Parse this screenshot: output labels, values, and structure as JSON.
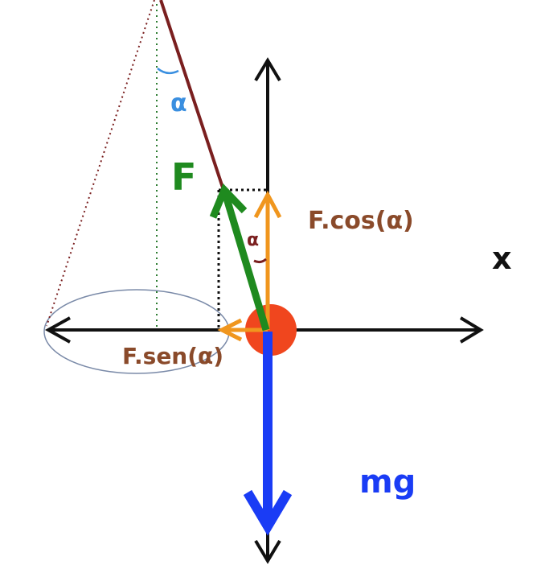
{
  "labels": {
    "force": "F",
    "angle_top": "α",
    "angle_bottom": "α",
    "vertical_component": "F.cos(α)",
    "horizontal_component": "F.sen(α)",
    "weight": "mg",
    "axis_x": "x"
  },
  "colors": {
    "background": "#ffffff",
    "axes": "#111111",
    "string": "#7a1f1f",
    "force": "#1f8a1f",
    "components": "#f0961e",
    "weight": "#1a3cf5",
    "mass": "#f0461e",
    "component_label": "#8a4a2a",
    "weight_label": "#1a3cf5",
    "force_label": "#1f8a1f",
    "angle_top_label": "#3a8fe0",
    "angle_bottom_label": "#7a1f1f",
    "orbit": "#7a8aa8",
    "cone_guide": "#7a1f1f",
    "vertical_guide": "#2e7d32",
    "dotted_projection": "#111111"
  }
}
